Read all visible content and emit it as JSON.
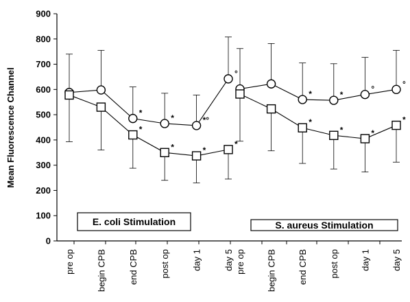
{
  "chart_data": {
    "type": "line",
    "ylabel": "Mean Fluorescence Channel",
    "ylim": [
      0,
      900
    ],
    "yticks": [
      0,
      100,
      200,
      300,
      400,
      500,
      600,
      700,
      800,
      900
    ],
    "grid": false,
    "legend": "none",
    "panels": [
      {
        "label": "E. coli Stimulation",
        "categories": [
          "pre op",
          "begin CPB",
          "end CPB",
          "post op",
          "day 1",
          "day 5"
        ],
        "series": [
          {
            "marker": "circle",
            "values": [
              588,
              598,
              485,
              465,
              457,
              642
            ],
            "error_high": [
              740,
              755,
              610,
              585,
              578,
              808
            ],
            "annotations": [
              "",
              "",
              "*",
              "*",
              "*°",
              "°"
            ]
          },
          {
            "marker": "square",
            "values": [
              578,
              530,
              420,
              350,
              337,
              362
            ],
            "error_low": [
              393,
              360,
              288,
              240,
              230,
              245
            ],
            "annotations": [
              "",
              "",
              "*",
              "*",
              "*",
              "*"
            ]
          }
        ]
      },
      {
        "label": "S. aureus Stimulation",
        "categories": [
          "pre op",
          "begin CPB",
          "end CPB",
          "post op",
          "day 1",
          "day 5"
        ],
        "series": [
          {
            "marker": "circle",
            "values": [
              602,
              622,
              560,
              557,
              580,
              600
            ],
            "error_high": [
              762,
              782,
              705,
              702,
              727,
              755
            ],
            "annotations": [
              "",
              "",
              "*",
              "*",
              "°",
              "°"
            ]
          },
          {
            "marker": "square",
            "values": [
              582,
              523,
              448,
              418,
              405,
              458
            ],
            "error_low": [
              395,
              357,
              307,
              285,
              273,
              312
            ],
            "annotations": [
              "",
              "",
              "*",
              "*",
              "*",
              "*"
            ]
          }
        ]
      }
    ]
  }
}
